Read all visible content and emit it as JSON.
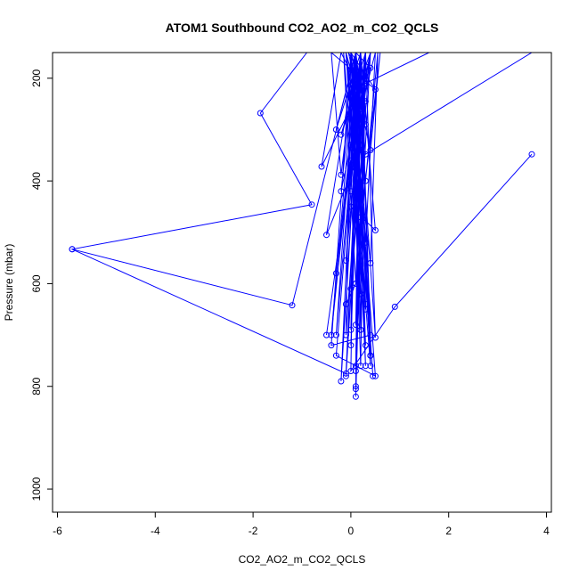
{
  "chart_data": {
    "type": "line",
    "title": "ATOM1 Southbound CO2_AO2_m_CO2_QCLS",
    "xlabel": "CO2_AO2_m_CO2_QCLS",
    "ylabel": "Pressure (mbar)",
    "xlim": [
      -6.1,
      4.1
    ],
    "ylim": [
      1045,
      150
    ],
    "y_reversed": true,
    "x_ticks": [
      -6,
      -4,
      -2,
      0,
      2,
      4
    ],
    "x_tick_labels": [
      "-6",
      "-4",
      "-2",
      "0",
      "2",
      "4"
    ],
    "y_ticks": [
      200,
      400,
      600,
      800,
      1000
    ],
    "y_tick_labels": [
      "200",
      "400",
      "600",
      "800",
      "1000"
    ],
    "grid": false,
    "legend": "none",
    "line_color": "#0000ff",
    "marker": "open-circle",
    "series": [
      {
        "x": [
          -0.9,
          -1.85,
          -0.8,
          -5.7,
          -0.1,
          0.2,
          -0.3,
          0.1,
          0.4,
          -0.6,
          -0.2,
          0.3,
          0.0,
          0.5,
          -0.4,
          -0.2,
          0.1,
          0.3,
          -0.1,
          0.2,
          -0.5,
          0.1,
          -0.2,
          0.4,
          0.0,
          0.5,
          0.2,
          -0.3,
          0.3,
          0.1,
          -0.1,
          0.2,
          0.4,
          -0.4,
          0.0,
          0.3,
          0.1,
          -0.2,
          0.2,
          0.4,
          0.0,
          -0.1,
          0.3,
          0.1,
          0.2,
          -0.3,
          0.5,
          0.0,
          0.2,
          0.1,
          0.3,
          -0.1,
          0.4,
          0.2,
          0.0,
          0.1,
          0.5,
          0.3,
          0.2,
          0.1,
          0.4,
          0.0,
          0.2,
          0.3,
          0.1,
          0.2,
          -0.1,
          0.3,
          0.1
        ],
        "y": [
          150,
          268,
          446,
          533,
          775,
          150,
          300,
          150,
          180,
          372,
          150,
          245,
          150,
          222,
          150,
          388,
          150,
          290,
          150,
          340,
          505,
          150,
          420,
          150,
          450,
          496,
          150,
          580,
          150,
          600,
          640,
          150,
          700,
          720,
          150,
          760,
          150,
          790,
          150,
          740,
          150,
          700,
          150,
          770,
          150,
          740,
          780,
          150,
          690,
          150,
          720,
          150,
          760,
          150,
          690,
          150,
          705,
          150,
          690,
          150,
          740,
          150,
          760,
          150,
          800,
          150,
          780,
          150,
          820
        ]
      },
      {
        "x": [
          3.7,
          0.3,
          0.1,
          0.0,
          0.2,
          0.0,
          0.1,
          0.2,
          0.5,
          0.3,
          0.1
        ],
        "y": [
          150,
          348,
          150,
          330,
          150,
          420,
          150,
          260,
          150,
          520,
          150
        ]
      },
      {
        "x": [
          -5.7,
          -1.2,
          0.1,
          0.3,
          0.0,
          0.2
        ],
        "y": [
          533,
          642,
          150,
          400,
          150,
          620
        ]
      },
      {
        "x": [
          3.7,
          0.9,
          0.0,
          0.1,
          -0.3,
          0.2,
          0.1,
          0.2,
          0.3,
          0.0,
          0.4,
          0.1,
          -0.4,
          0.2,
          0.1,
          0.3
        ],
        "y": [
          348,
          645,
          770,
          150,
          700,
          150,
          760,
          150,
          640,
          150,
          740,
          150,
          700,
          150,
          805,
          150
        ]
      },
      {
        "x": [
          -0.5,
          0.3,
          -0.2,
          0.4,
          0.0,
          0.2,
          0.1,
          0.3,
          -0.1,
          0.2,
          0.0,
          0.4,
          0.1,
          0.2,
          0.0
        ],
        "y": [
          700,
          150,
          310,
          150,
          360,
          150,
          470,
          150,
          555,
          150,
          610,
          150,
          680,
          150,
          720
        ]
      },
      {
        "x": [
          1.6,
          0.3,
          -0.05,
          0.4,
          0.6,
          0.2,
          -0.1,
          0.4,
          0.55,
          0.1,
          -0.15,
          0.3,
          0.0,
          0.45
        ],
        "y": [
          150,
          210,
          150,
          340,
          150,
          480,
          150,
          560,
          150,
          600,
          150,
          650,
          150,
          780
        ]
      }
    ]
  }
}
